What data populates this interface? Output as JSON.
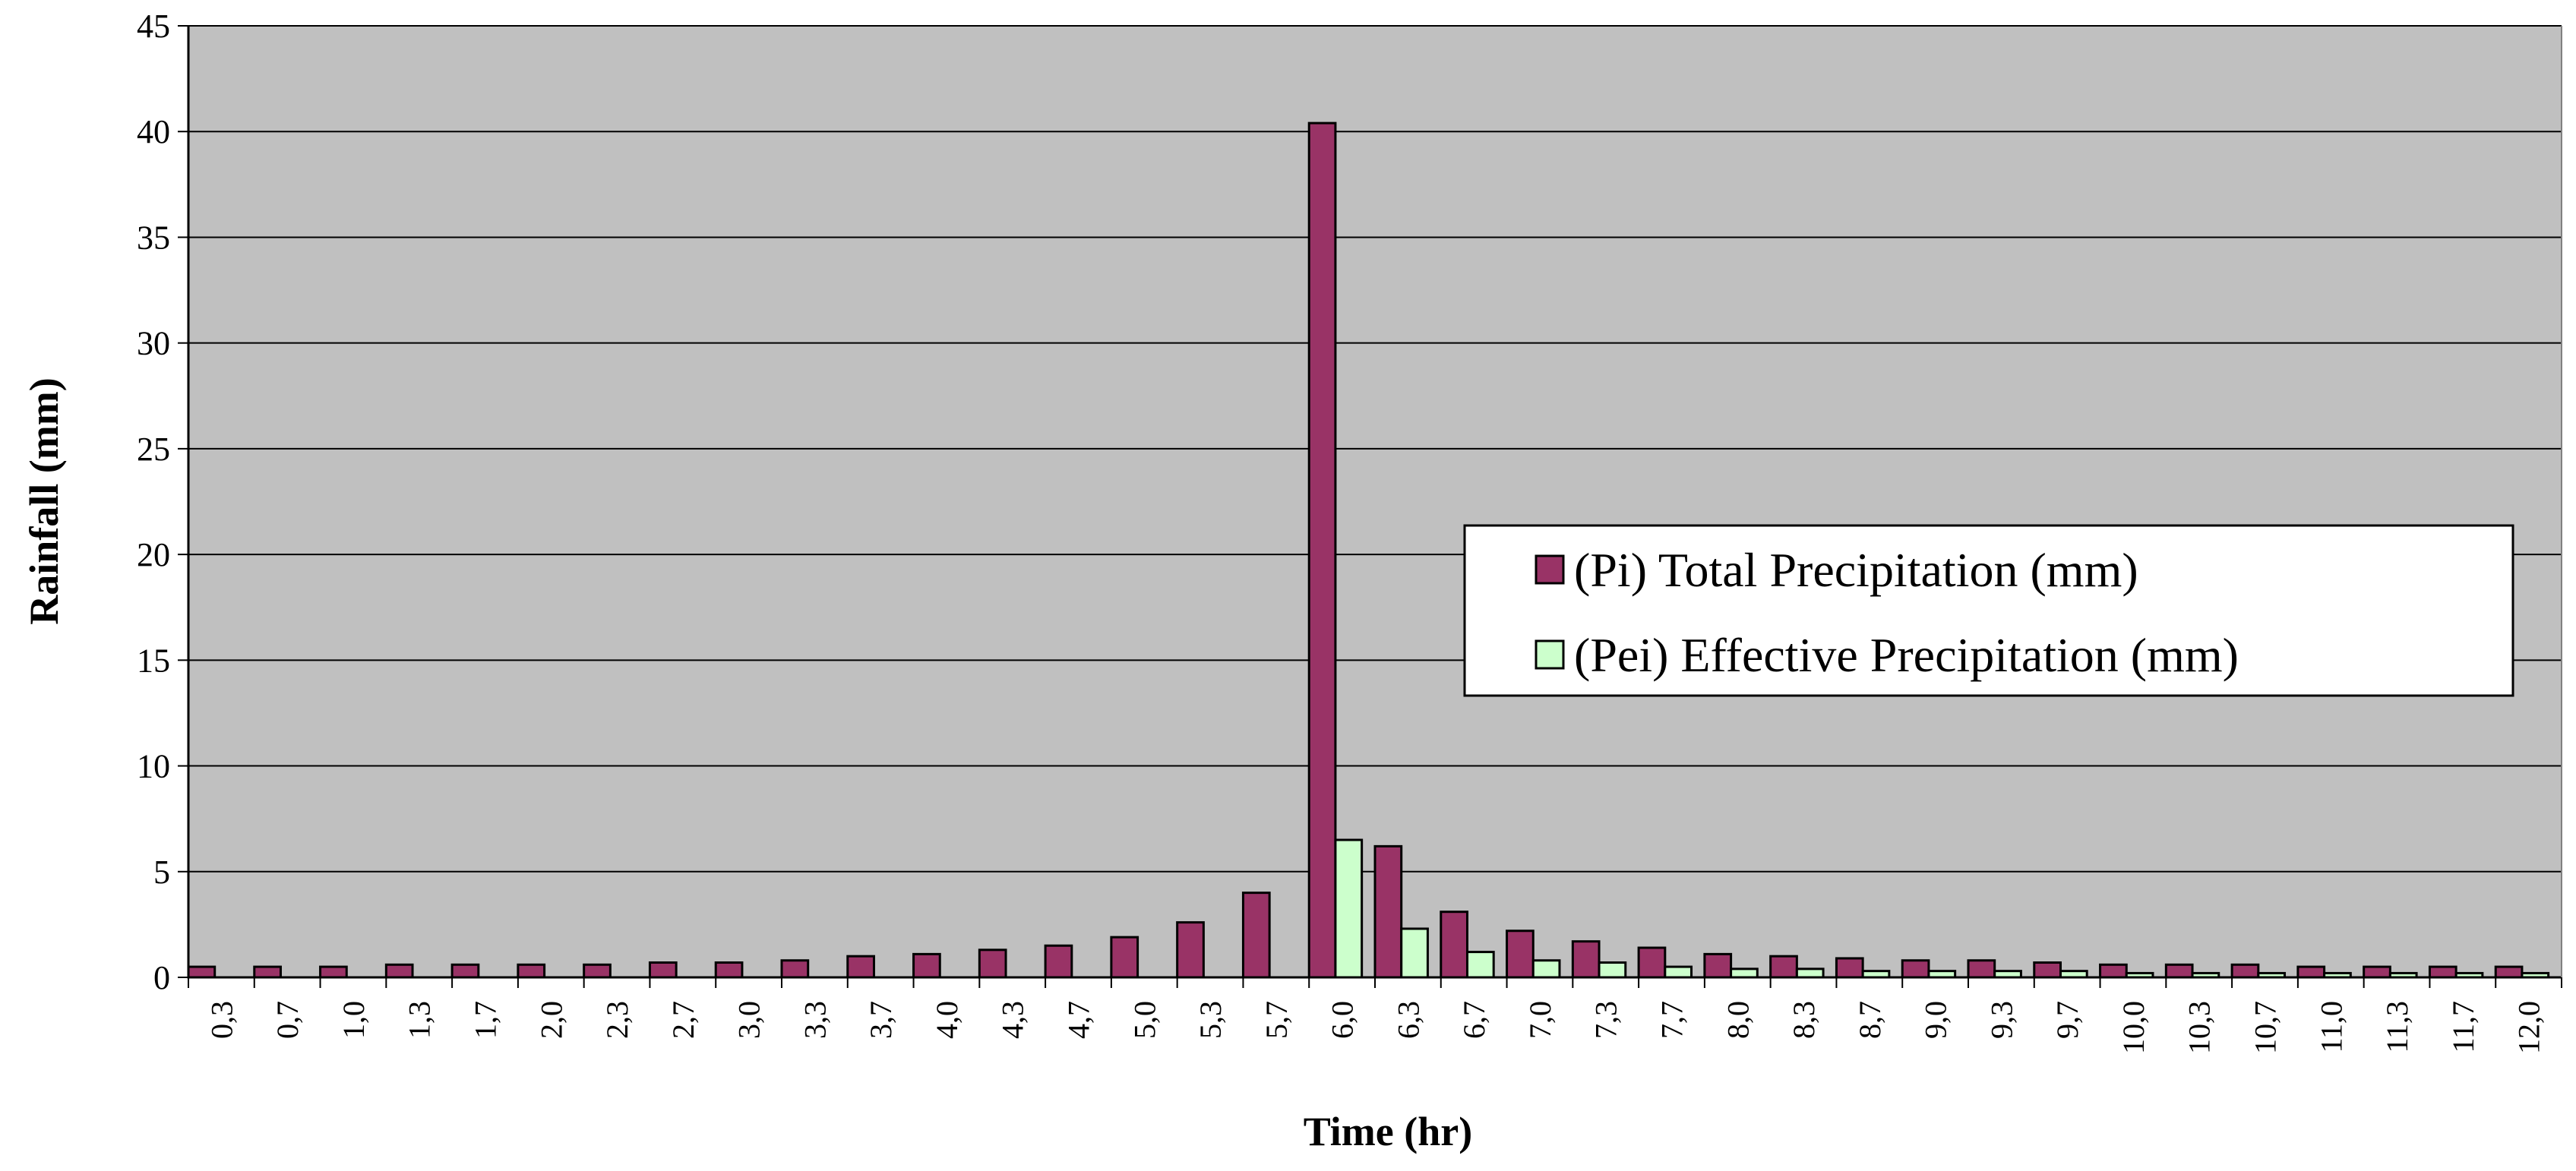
{
  "chart_data": {
    "type": "bar",
    "title": "",
    "xlabel": "Time (hr)",
    "ylabel": "Rainfall (mm)",
    "ylim": [
      0,
      45
    ],
    "yticks": [
      0,
      5,
      10,
      15,
      20,
      25,
      30,
      35,
      40,
      45
    ],
    "grid": true,
    "legend_position": "center-right",
    "plot_background": "#c0c0c0",
    "categories": [
      "0,3",
      "0,7",
      "1,0",
      "1,3",
      "1,7",
      "2,0",
      "2,3",
      "2,7",
      "3,0",
      "3,3",
      "3,7",
      "4,0",
      "4,3",
      "4,7",
      "5,0",
      "5,3",
      "5,7",
      "6,0",
      "6,3",
      "6,7",
      "7,0",
      "7,3",
      "7,7",
      "8,0",
      "8,3",
      "8,7",
      "9,0",
      "9,3",
      "9,7",
      "10,0",
      "10,3",
      "10,7",
      "11,0",
      "11,3",
      "11,7",
      "12,0"
    ],
    "series": [
      {
        "name": "(Pi) Total Precipitation (mm)",
        "color": "#993366",
        "values": [
          0.5,
          0.5,
          0.5,
          0.6,
          0.6,
          0.6,
          0.6,
          0.7,
          0.7,
          0.8,
          1.0,
          1.1,
          1.3,
          1.5,
          1.9,
          2.6,
          4.0,
          40.4,
          6.2,
          3.1,
          2.2,
          1.7,
          1.4,
          1.1,
          1.0,
          0.9,
          0.8,
          0.8,
          0.7,
          0.6,
          0.6,
          0.6,
          0.5,
          0.5,
          0.5,
          0.5
        ]
      },
      {
        "name": "(Pei) Effective Precipitation (mm)",
        "color": "#ccffcc",
        "values": [
          0,
          0,
          0,
          0,
          0,
          0,
          0,
          0,
          0,
          0,
          0,
          0,
          0,
          0,
          0,
          0,
          0,
          6.5,
          2.3,
          1.2,
          0.8,
          0.7,
          0.5,
          0.4,
          0.4,
          0.3,
          0.3,
          0.3,
          0.3,
          0.2,
          0.2,
          0.2,
          0.2,
          0.2,
          0.2,
          0.2
        ]
      }
    ]
  }
}
